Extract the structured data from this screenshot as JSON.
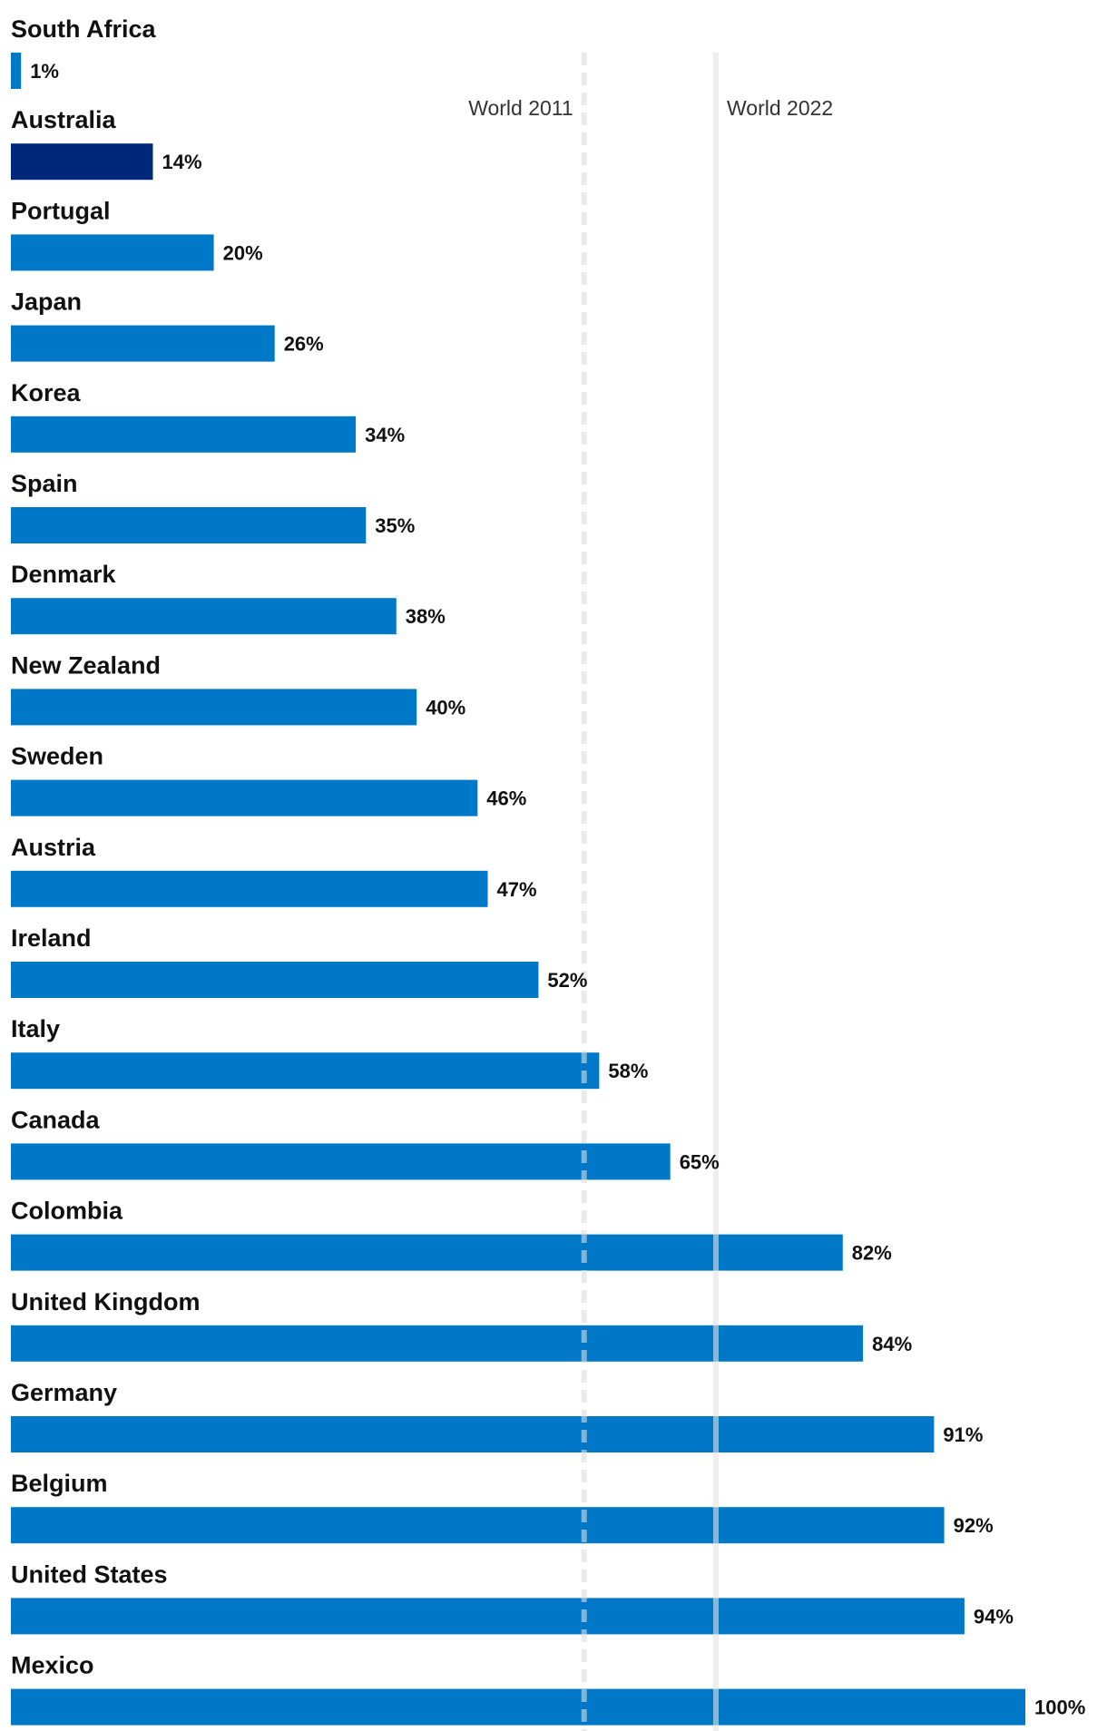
{
  "chart_data": {
    "type": "bar",
    "orientation": "horizontal",
    "title": "",
    "xlabel": "",
    "ylabel": "",
    "xlim": [
      0,
      100
    ],
    "grid": false,
    "legend": "none",
    "categories": [
      "South Africa",
      "Australia",
      "Portugal",
      "Japan",
      "Korea",
      "Spain",
      "Denmark",
      "New Zealand",
      "Sweden",
      "Austria",
      "Ireland",
      "Italy",
      "Canada",
      "Colombia",
      "United Kingdom",
      "Germany",
      "Belgium",
      "United States",
      "Mexico"
    ],
    "values": [
      1,
      14,
      20,
      26,
      34,
      35,
      38,
      40,
      46,
      47,
      52,
      58,
      65,
      82,
      84,
      91,
      92,
      94,
      100
    ],
    "value_labels": [
      "1%",
      "14%",
      "20%",
      "26%",
      "34%",
      "35%",
      "38%",
      "40%",
      "46%",
      "47%",
      "52%",
      "58%",
      "65%",
      "82%",
      "84%",
      "91%",
      "92%",
      "94%",
      "100%"
    ],
    "highlight": "Australia",
    "colors": {
      "bar": "#0078c8",
      "highlight": "#00287a",
      "reference_2011": "#dcdcdc",
      "reference_2022": "#e2e2e2"
    },
    "reference_lines": [
      {
        "label": "World 2011",
        "value": 56.5,
        "style": "dashed"
      },
      {
        "label": "World 2022",
        "value": 69.5,
        "style": "solid"
      }
    ]
  }
}
